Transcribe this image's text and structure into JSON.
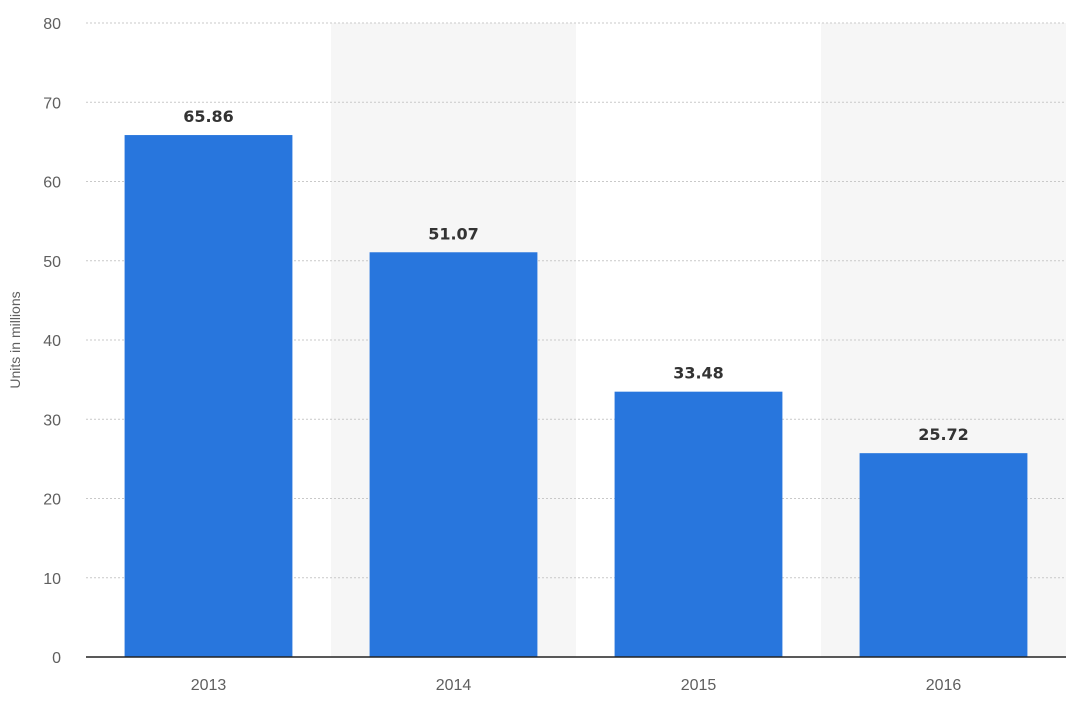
{
  "chart_data": {
    "type": "bar",
    "categories": [
      "2013",
      "2014",
      "2015",
      "2016"
    ],
    "values": [
      65.86,
      51.07,
      33.48,
      25.72
    ],
    "value_labels": [
      "65.86",
      "51.07",
      "33.48",
      "25.72"
    ],
    "ylabel": "Units in millions",
    "ylim": [
      0,
      80
    ],
    "yticks": [
      "0",
      "10",
      "20",
      "30",
      "40",
      "50",
      "60",
      "70",
      "80"
    ],
    "grid": true,
    "bar_color": "#2876dd",
    "band_color": "#f6f6f6"
  }
}
